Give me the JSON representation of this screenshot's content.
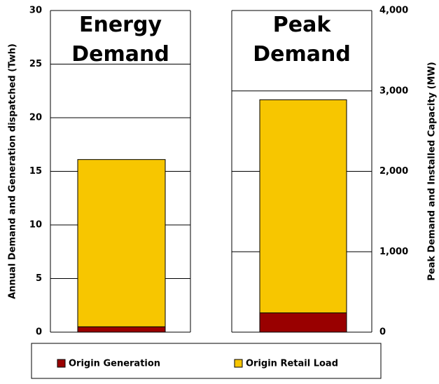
{
  "chart_data": [
    {
      "type": "bar",
      "stacked": true,
      "title": "Energy Demand",
      "ylabel": "Annual Demand and  Generation dispatched (Twh)",
      "axis_side": "left",
      "ylim": [
        0,
        30
      ],
      "yticks": [
        0,
        5,
        10,
        15,
        20,
        25,
        30
      ],
      "grid": true,
      "series": [
        {
          "name": "Origin Generation",
          "color": "#990000",
          "values": [
            0.5
          ]
        },
        {
          "name": "Origin Retail Load",
          "color": "#f7c600",
          "values": [
            15.6
          ]
        }
      ]
    },
    {
      "type": "bar",
      "stacked": true,
      "title": "Peak Demand",
      "ylabel": "Peak Demand and Installed Capacity (MW)",
      "axis_side": "right",
      "ylim": [
        0,
        4000
      ],
      "yticks": [
        0,
        {
          "value": 1000,
          "label": "1,000"
        },
        {
          "value": 2000,
          "label": "2,000"
        },
        {
          "value": 3000,
          "label": "3,000"
        },
        {
          "value": 4000,
          "label": "4,000"
        }
      ],
      "grid": true,
      "series": [
        {
          "name": "Origin Generation",
          "color": "#990000",
          "values": [
            240
          ]
        },
        {
          "name": "Origin Retail Load",
          "color": "#f7c600",
          "values": [
            2650
          ]
        }
      ]
    }
  ]
}
